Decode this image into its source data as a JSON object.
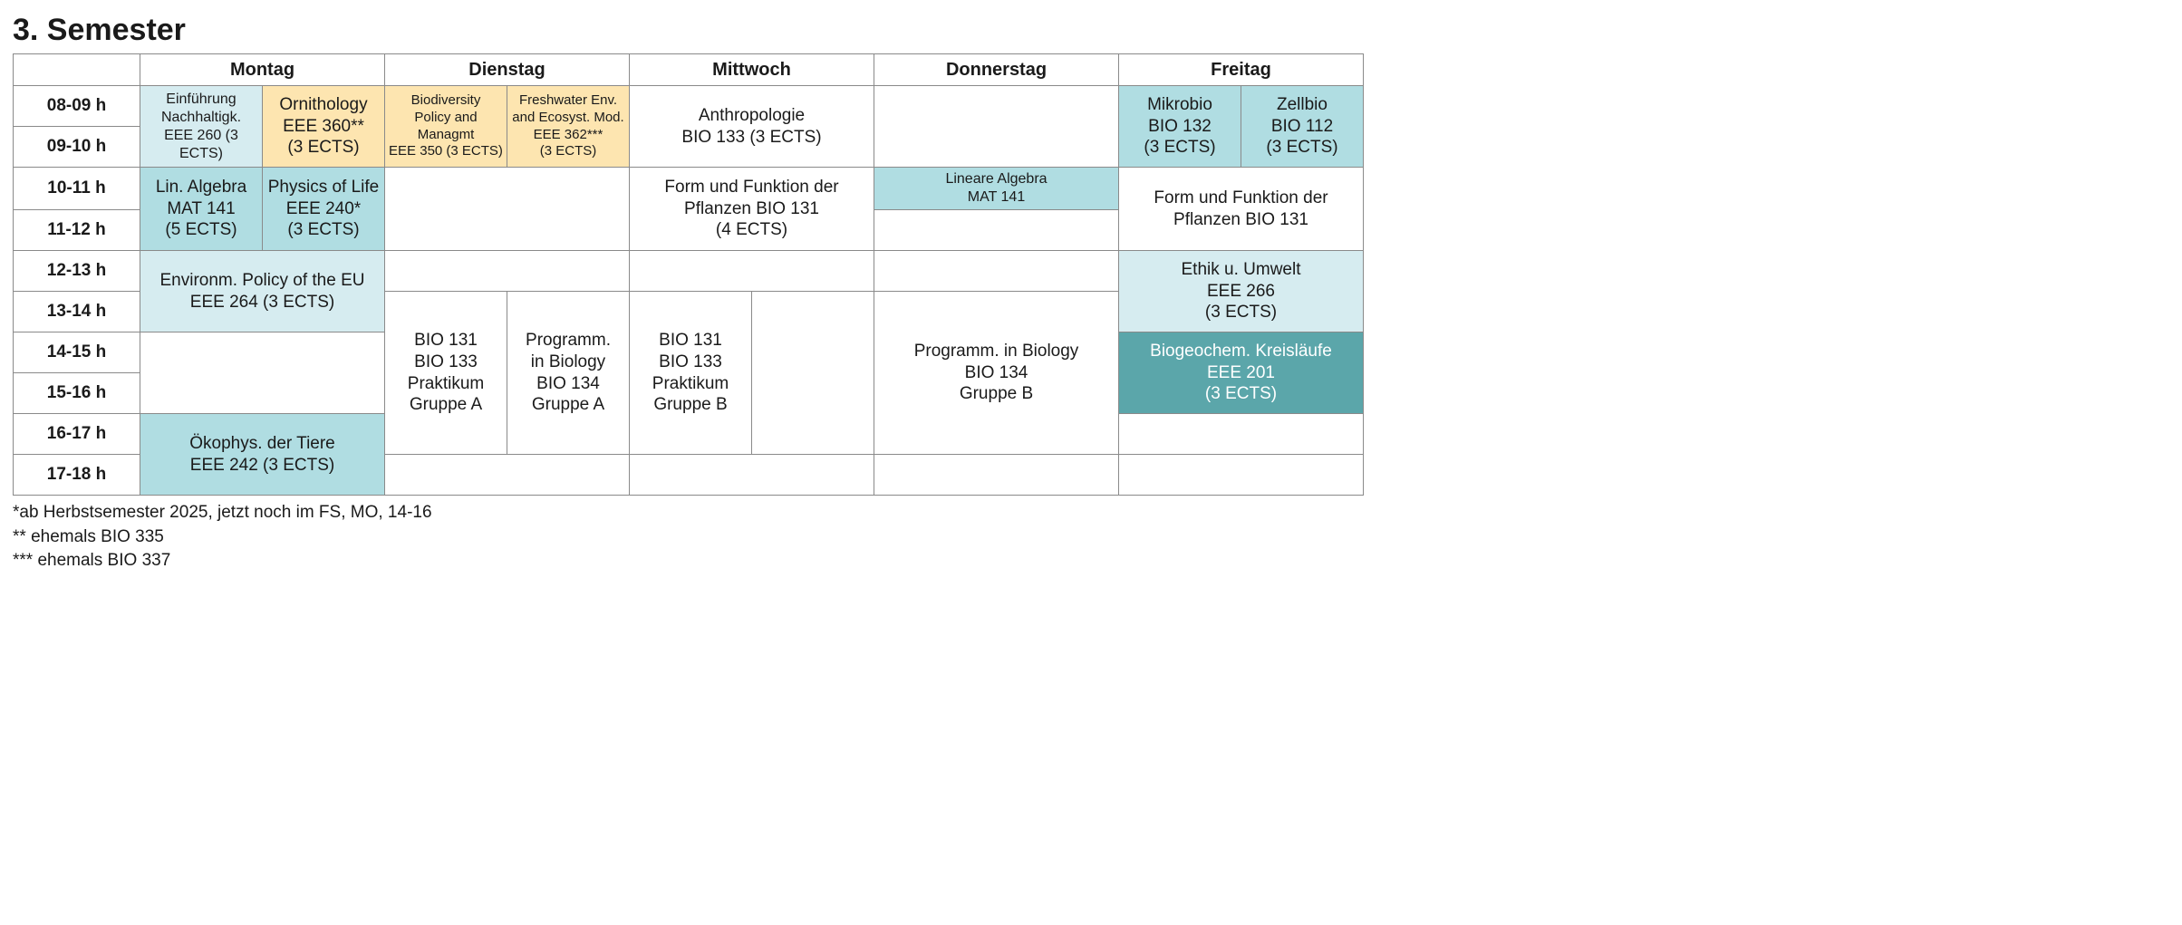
{
  "title": "3. Semester",
  "days": {
    "mon": "Montag",
    "tue": "Dienstag",
    "wed": "Mittwoch",
    "thu": "Donnerstag",
    "fri": "Freitag"
  },
  "times": {
    "t08": "08-09 h",
    "t09": "09-10 h",
    "t10": "10-11 h",
    "t11": "11-12 h",
    "t12": "12-13 h",
    "t13": "13-14 h",
    "t14": "14-15 h",
    "t15": "15-16 h",
    "t16": "16-17 h",
    "t17": "17-18 h"
  },
  "colors": {
    "light_cyan": "#d6ecf0",
    "mid_cyan": "#b0dde2",
    "teal": "#5ba6aa",
    "yellow": "#fde5b0",
    "white": "#ffffff"
  },
  "courses": {
    "mon_08_a": {
      "l1": "Einführung",
      "l2": "Nachhaltigk.",
      "l3": "EEE 260 (3 ECTS)",
      "color": "light_cyan",
      "size": "small"
    },
    "mon_08_b": {
      "l1": "Ornithology",
      "l2": "EEE 360**",
      "l3": "(3 ECTS)",
      "color": "yellow"
    },
    "mon_10_a": {
      "l1": "Lin. Algebra",
      "l2": "MAT 141",
      "l3": "(5 ECTS)",
      "color": "mid_cyan"
    },
    "mon_10_b": {
      "l1": "Physics of Life",
      "l2": "EEE 240*",
      "l3": "(3 ECTS)",
      "color": "mid_cyan"
    },
    "mon_12": {
      "l1": "Environm. Policy of the EU",
      "l2": "EEE 264 (3 ECTS)",
      "color": "light_cyan"
    },
    "mon_16": {
      "l1": "Ökophys. der Tiere",
      "l2": "EEE 242 (3 ECTS)",
      "color": "mid_cyan"
    },
    "tue_08_a": {
      "l1": "Biodiversity",
      "l2": "Policy and",
      "l3": "Managmt",
      "l4": "EEE 350 (3 ECTS)",
      "color": "yellow",
      "size": "xsmall"
    },
    "tue_08_b": {
      "l1": "Freshwater Env.",
      "l2": "and Ecosyst. Mod.",
      "l3": "EEE 362***",
      "l4": "(3 ECTS)",
      "color": "yellow",
      "size": "xsmall"
    },
    "tue_13_a": {
      "l1": "BIO 131",
      "l2": "BIO 133",
      "l3": "Praktikum",
      "l4": "Gruppe A",
      "color": "white"
    },
    "tue_13_b": {
      "l1": "Programm.",
      "l2": "in Biology",
      "l3": "BIO 134",
      "l4": "Gruppe A",
      "color": "white"
    },
    "wed_08": {
      "l1": "Anthropologie",
      "l2": "BIO 133 (3 ECTS)",
      "color": "white"
    },
    "wed_10": {
      "l1": "Form und Funktion der",
      "l2": "Pflanzen BIO 131",
      "l3": "(4 ECTS)",
      "color": "white"
    },
    "wed_13_a": {
      "l1": "BIO 131",
      "l2": "BIO 133",
      "l3": "Praktikum",
      "l4": "Gruppe B",
      "color": "white"
    },
    "thu_10": {
      "l1": "Lineare Algebra",
      "l2": "MAT 141",
      "color": "mid_cyan",
      "size": "small"
    },
    "thu_13": {
      "l1": "Programm. in Biology",
      "l2": "BIO 134",
      "l3": "Gruppe B",
      "color": "white"
    },
    "fri_08_a": {
      "l1": "Mikrobio",
      "l2": "BIO 132",
      "l3": "(3 ECTS)",
      "color": "mid_cyan"
    },
    "fri_08_b": {
      "l1": "Zellbio",
      "l2": "BIO 112",
      "l3": "(3 ECTS)",
      "color": "mid_cyan"
    },
    "fri_10": {
      "l1": "Form und Funktion der",
      "l2": "Pflanzen BIO 131",
      "color": "white"
    },
    "fri_12": {
      "l1": "Ethik u. Umwelt",
      "l2": "EEE 266",
      "l3": "(3 ECTS)",
      "color": "light_cyan"
    },
    "fri_14": {
      "l1": "Biogeochem. Kreisläufe",
      "l2": "EEE 201",
      "l3": "(3 ECTS)",
      "color": "teal"
    }
  },
  "footnotes": {
    "f1": "*ab Herbstsemester 2025, jetzt noch im FS, MO, 14-16",
    "f2": "** ehemals BIO 335",
    "f3": "*** ehemals BIO 337"
  }
}
